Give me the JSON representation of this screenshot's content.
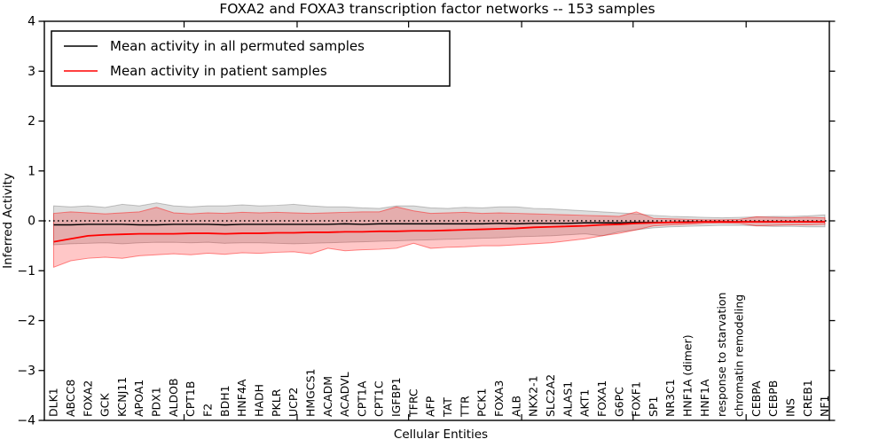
{
  "figure": {
    "title": "FOXA2 and FOXA3 transcription factor networks -- 153 samples",
    "xlabel": "Cellular Entities",
    "ylabel": "Inferred Activity"
  },
  "legend": {
    "position": "upper left",
    "items": [
      {
        "label": "Mean activity in all permuted samples",
        "color": "#000000"
      },
      {
        "label": "Mean activity in patient samples",
        "color": "#ff0000"
      }
    ]
  },
  "chart_data": {
    "type": "line",
    "title": "FOXA2 and FOXA3 transcription factor networks -- 153 samples",
    "xlabel": "Cellular Entities",
    "ylabel": "Inferred Activity",
    "ylim": [
      -4,
      4
    ],
    "y_ticks": [
      4,
      3,
      2,
      1,
      0,
      -1,
      -2,
      -3,
      -4
    ],
    "grid": false,
    "legend_position": "upper left",
    "reference_line": {
      "y": 0.0,
      "style": "dotted",
      "color": "#000000"
    },
    "categories": [
      "DLK1",
      "ABCC8",
      "FOXA2",
      "GCK",
      "KCNJ11",
      "APOA1",
      "PDX1",
      "ALDOB",
      "CPT1B",
      "F2",
      "BDH1",
      "HNF4A",
      "HADH",
      "PKLR",
      "UCP2",
      "HMGCS1",
      "ACADM",
      "ACADVL",
      "CPT1A",
      "CPT1C",
      "IGFBP1",
      "TFRC",
      "AFP",
      "TAT",
      "TTR",
      "PCK1",
      "FOXA3",
      "ALB",
      "NKX2-1",
      "SLC2A2",
      "ALAS1",
      "AKT1",
      "FOXA1",
      "G6PC",
      "FOXF1",
      "SP1",
      "NR3C1",
      "HNF1A (dimer)",
      "HNF1A",
      "response to starvation",
      "chromatin remodeling",
      "CEBPA",
      "CEBPB",
      "INS",
      "CREB1",
      "NF1"
    ],
    "series": [
      {
        "name": "Mean activity in all permuted samples",
        "color": "#000000",
        "style": "solid",
        "values": [
          -0.08,
          -0.08,
          -0.07,
          -0.07,
          -0.07,
          -0.08,
          -0.08,
          -0.07,
          -0.07,
          -0.07,
          -0.08,
          -0.07,
          -0.07,
          -0.07,
          -0.07,
          -0.07,
          -0.07,
          -0.06,
          -0.07,
          -0.06,
          -0.06,
          -0.06,
          -0.06,
          -0.06,
          -0.06,
          -0.06,
          -0.05,
          -0.06,
          -0.05,
          -0.05,
          -0.05,
          -0.04,
          -0.04,
          -0.04,
          -0.03,
          -0.03,
          -0.03,
          -0.02,
          -0.02,
          -0.02,
          -0.02,
          -0.02,
          -0.02,
          -0.02,
          -0.02,
          -0.02
        ]
      },
      {
        "name": "Mean activity in patient samples",
        "color": "#ff0000",
        "style": "solid",
        "values": [
          -0.42,
          -0.36,
          -0.3,
          -0.28,
          -0.27,
          -0.26,
          -0.26,
          -0.26,
          -0.25,
          -0.25,
          -0.26,
          -0.25,
          -0.25,
          -0.24,
          -0.24,
          -0.23,
          -0.23,
          -0.22,
          -0.22,
          -0.21,
          -0.21,
          -0.2,
          -0.2,
          -0.19,
          -0.18,
          -0.17,
          -0.16,
          -0.15,
          -0.13,
          -0.12,
          -0.11,
          -0.1,
          -0.08,
          -0.07,
          -0.05,
          -0.04,
          -0.03,
          -0.03,
          -0.02,
          -0.02,
          -0.02,
          -0.02,
          -0.02,
          -0.02,
          -0.02,
          -0.02
        ]
      }
    ],
    "bands": [
      {
        "name": "permuted samples range",
        "color": "#000000",
        "fill_opacity": 0.13,
        "edge_opacity": 0.22,
        "upper": [
          0.3,
          0.28,
          0.3,
          0.27,
          0.33,
          0.3,
          0.36,
          0.3,
          0.28,
          0.3,
          0.3,
          0.32,
          0.3,
          0.31,
          0.33,
          0.3,
          0.28,
          0.28,
          0.26,
          0.25,
          0.3,
          0.3,
          0.26,
          0.25,
          0.27,
          0.26,
          0.28,
          0.28,
          0.25,
          0.24,
          0.22,
          0.2,
          0.18,
          0.16,
          0.14,
          0.11,
          0.09,
          0.08,
          0.07,
          0.06,
          0.07,
          0.08,
          0.09,
          0.09,
          0.1,
          0.12
        ],
        "lower": [
          -0.48,
          -0.46,
          -0.45,
          -0.44,
          -0.46,
          -0.44,
          -0.43,
          -0.43,
          -0.44,
          -0.43,
          -0.45,
          -0.44,
          -0.44,
          -0.45,
          -0.46,
          -0.45,
          -0.44,
          -0.43,
          -0.42,
          -0.41,
          -0.4,
          -0.39,
          -0.38,
          -0.37,
          -0.36,
          -0.35,
          -0.34,
          -0.32,
          -0.31,
          -0.3,
          -0.28,
          -0.26,
          -0.3,
          -0.22,
          -0.18,
          -0.14,
          -0.12,
          -0.11,
          -0.1,
          -0.09,
          -0.09,
          -0.1,
          -0.11,
          -0.11,
          -0.12,
          -0.12
        ]
      },
      {
        "name": "patient samples range",
        "color": "#ff0000",
        "fill_opacity": 0.22,
        "edge_opacity": 0.45,
        "upper": [
          0.15,
          0.18,
          0.16,
          0.14,
          0.16,
          0.18,
          0.27,
          0.16,
          0.14,
          0.16,
          0.15,
          0.17,
          0.16,
          0.17,
          0.16,
          0.15,
          0.16,
          0.17,
          0.18,
          0.18,
          0.28,
          0.2,
          0.15,
          0.16,
          0.17,
          0.15,
          0.16,
          0.15,
          0.14,
          0.13,
          0.12,
          0.11,
          0.1,
          0.09,
          0.18,
          0.05,
          0.04,
          0.03,
          0.02,
          0.02,
          0.03,
          0.08,
          0.07,
          0.06,
          0.07,
          0.06
        ],
        "lower": [
          -0.93,
          -0.8,
          -0.75,
          -0.73,
          -0.75,
          -0.7,
          -0.68,
          -0.66,
          -0.68,
          -0.65,
          -0.67,
          -0.64,
          -0.65,
          -0.63,
          -0.62,
          -0.66,
          -0.55,
          -0.6,
          -0.58,
          -0.57,
          -0.55,
          -0.45,
          -0.55,
          -0.53,
          -0.52,
          -0.5,
          -0.5,
          -0.48,
          -0.46,
          -0.44,
          -0.4,
          -0.36,
          -0.3,
          -0.25,
          -0.18,
          -0.1,
          -0.08,
          -0.07,
          -0.05,
          -0.04,
          -0.05,
          -0.1,
          -0.09,
          -0.08,
          -0.08,
          -0.07
        ]
      }
    ]
  }
}
